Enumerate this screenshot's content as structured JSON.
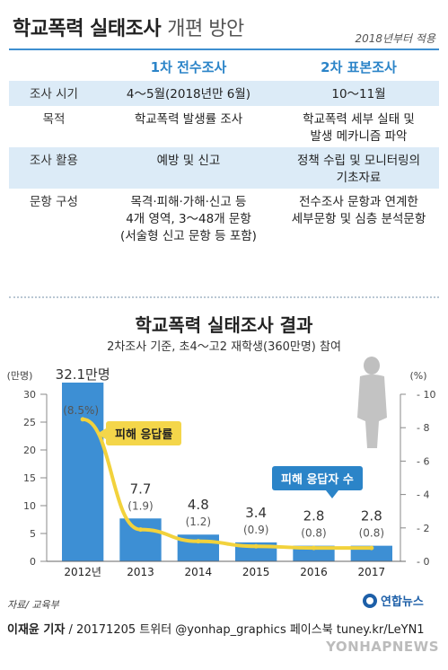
{
  "header": {
    "title": "학교폭력 실태조사",
    "subtitle": "개편 방안",
    "note": "2018년부터 적용"
  },
  "table": {
    "col1_header": "1차 전수조사",
    "col2_header": "2차 표본조사",
    "rows": [
      {
        "label": "조사 시기",
        "col1": [
          "4～5월(2018년만 6월)"
        ],
        "col2": [
          "10～11월"
        ]
      },
      {
        "label": "목적",
        "col1": [
          "학교폭력 발생률 조사"
        ],
        "col2": [
          "학교폭력 세부 실태 및",
          "발생 메카니즘 파악"
        ]
      },
      {
        "label": "조사 활용",
        "col1": [
          "예방 및 신고"
        ],
        "col2": [
          "정책 수립 및 모니터링의",
          "기초자료"
        ]
      },
      {
        "label": "문항 구성",
        "col1": [
          "목격·피해·가해·신고 등",
          "4개 영역, 3～48개 문항",
          "(서술형 신고 문항 등 포함)"
        ],
        "col2": [
          "전수조사 문항과 연계한",
          "세부문항 및 심층 분석문항"
        ]
      }
    ]
  },
  "chart": {
    "title": "학교폭력 실태조사 결과",
    "subtitle": "2차조사 기준, 초4～고2 재학생(360만명) 참여",
    "left_unit": "(만명)",
    "right_unit": "(%)",
    "legend_rate": "피해 응답률",
    "legend_count": "피해 응답자 수"
  },
  "chart_data": {
    "type": "bar",
    "categories": [
      "2012년",
      "2013",
      "2014",
      "2015",
      "2016",
      "2017"
    ],
    "series": [
      {
        "name": "피해 응답자 수",
        "type": "bar",
        "axis": "left",
        "values": [
          32.1,
          7.7,
          4.8,
          3.4,
          2.8,
          2.8
        ],
        "labels": [
          "32.1만명",
          "7.7",
          "4.8",
          "3.4",
          "2.8",
          "2.8"
        ],
        "color": "#3d8fd4"
      },
      {
        "name": "피해 응답률",
        "type": "line",
        "axis": "right",
        "values": [
          8.5,
          1.9,
          1.2,
          0.9,
          0.8,
          0.8
        ],
        "labels": [
          "(8.5%)",
          "(1.9)",
          "(1.2)",
          "(0.9)",
          "(0.8)",
          "(0.8)"
        ],
        "color": "#f2d23c"
      }
    ],
    "left_axis": {
      "ticks": [
        0,
        5,
        10,
        15,
        20,
        25,
        30
      ],
      "ylim": [
        0,
        30
      ]
    },
    "right_axis": {
      "ticks": [
        0,
        2,
        4,
        6,
        8,
        10
      ],
      "ylim": [
        0,
        10
      ]
    }
  },
  "footer": {
    "source": "자료/ 교육부",
    "credit": "이재윤 기자",
    "rest": " / 20171205   트위터 @yonhap_graphics  페이스북 tuney.kr/LeYN1",
    "logo_text": "연합뉴스",
    "watermark": "YONHAPNEWS"
  },
  "colors": {
    "accent": "#2b84c8",
    "bar": "#3d8fd4",
    "line": "#f2d23c",
    "shade": "#dcebf7"
  }
}
